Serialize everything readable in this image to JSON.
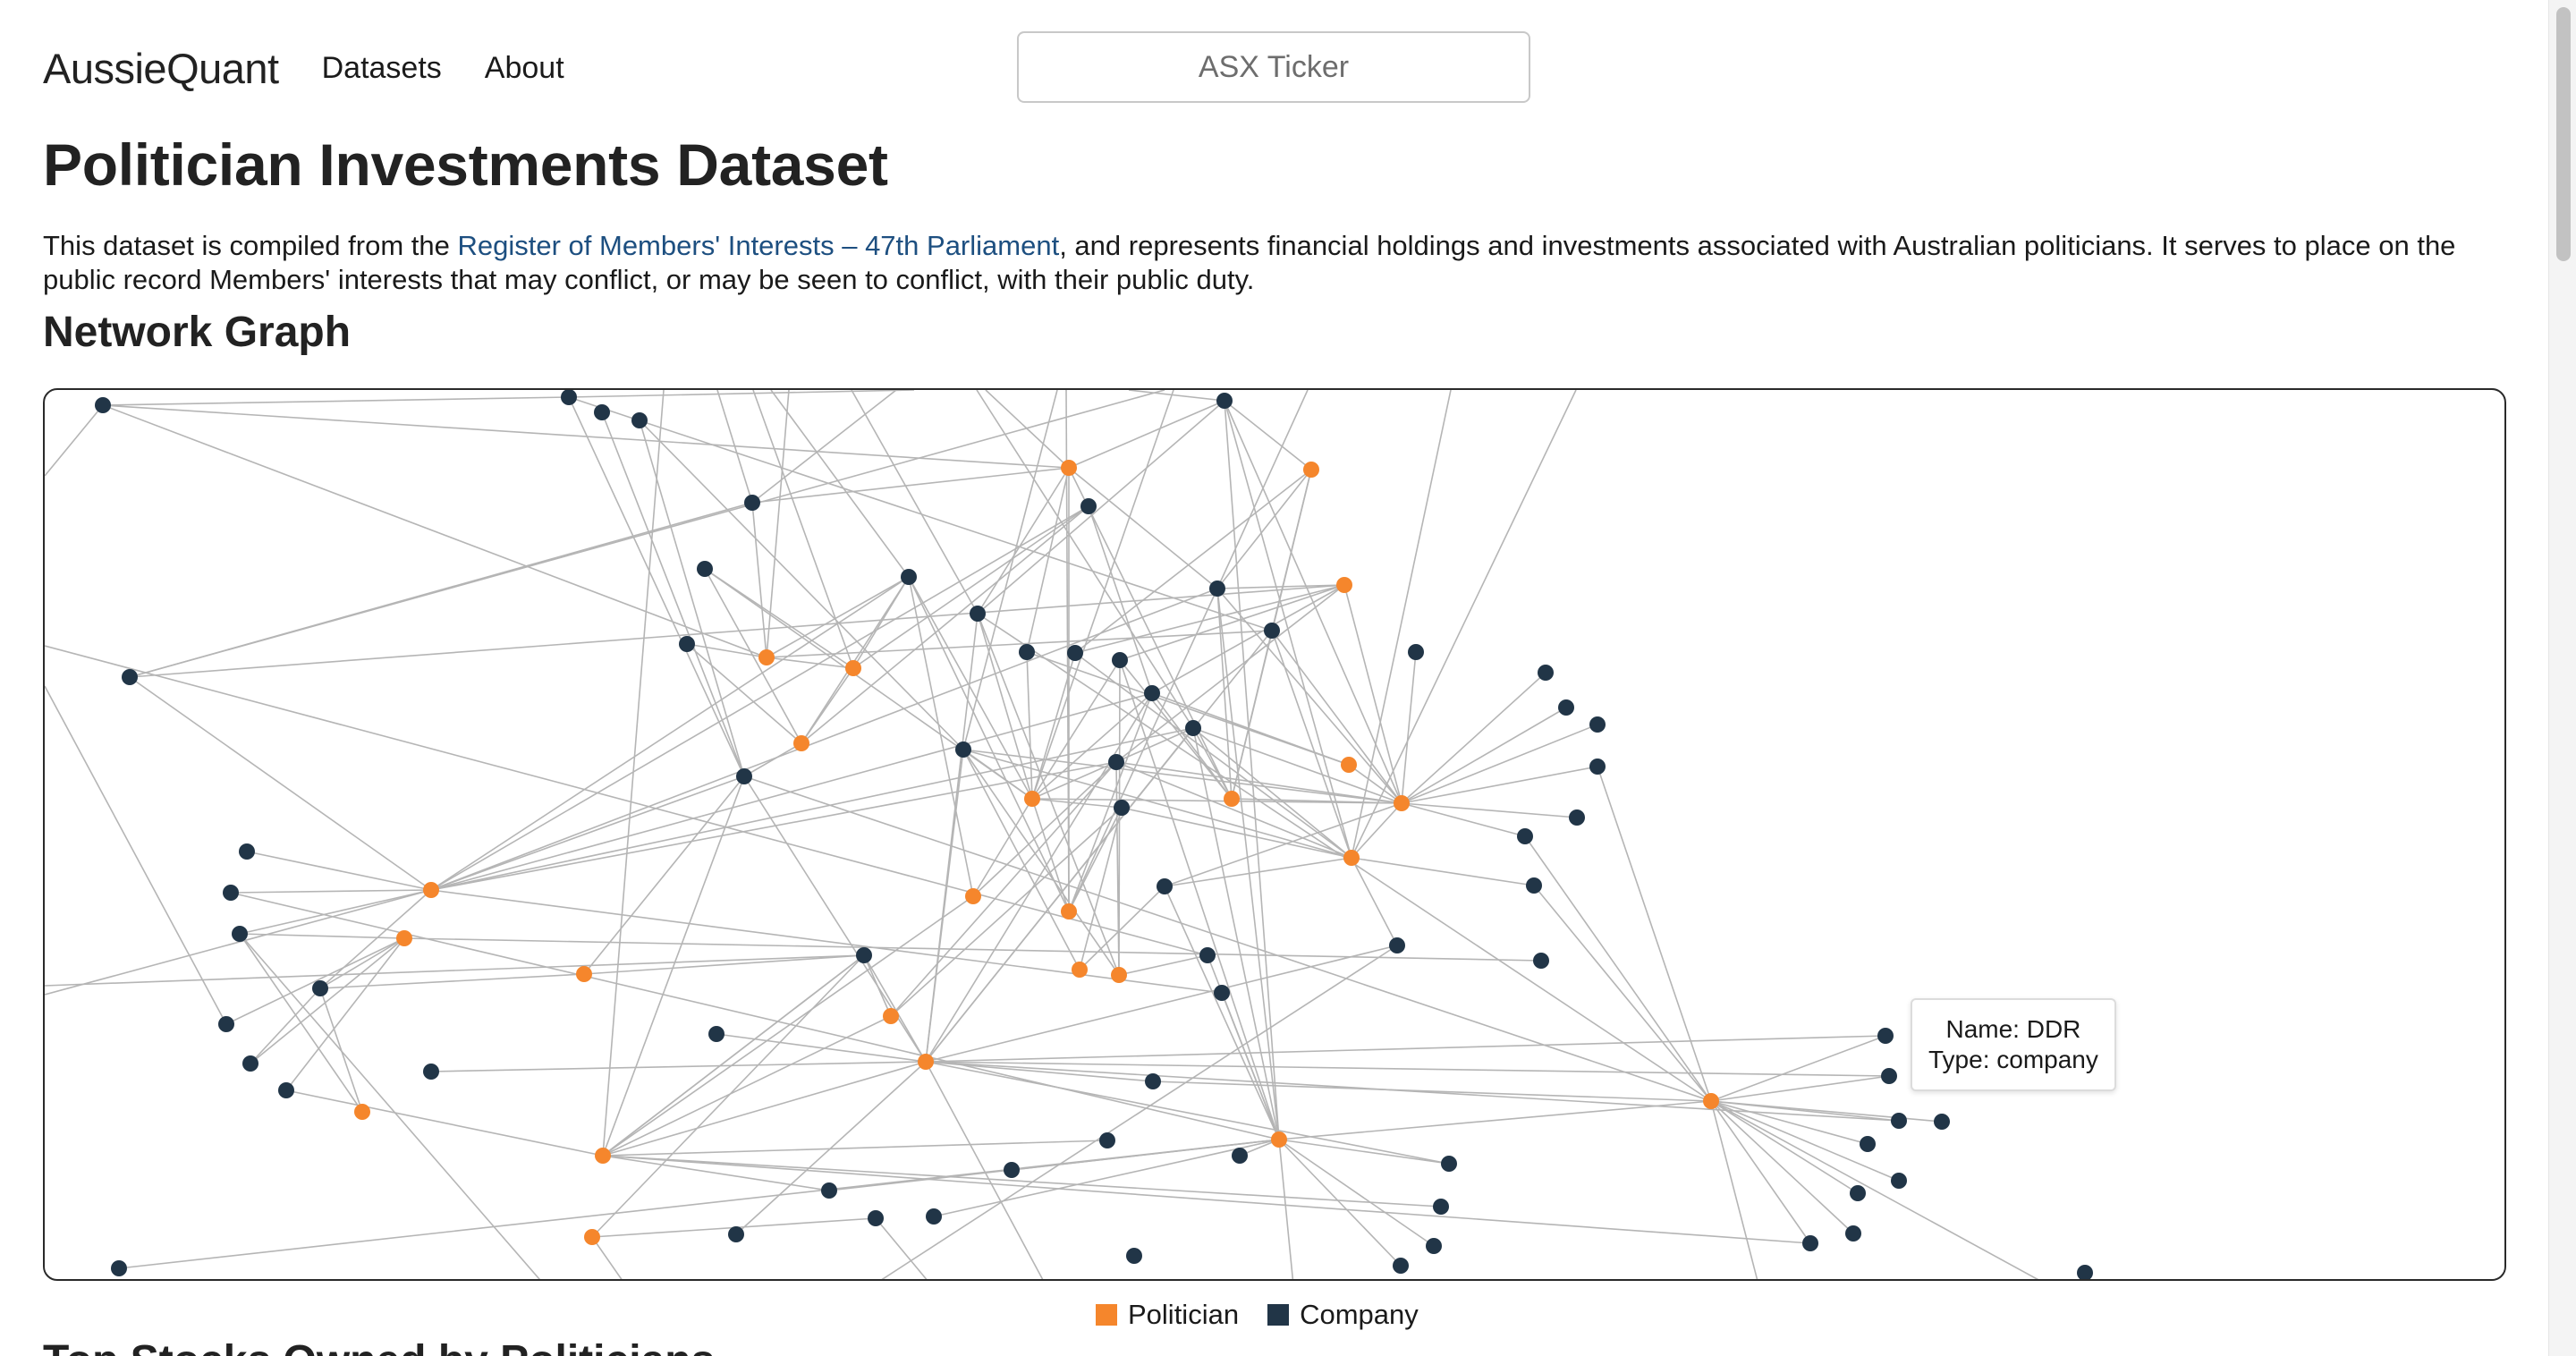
{
  "nav": {
    "brand": "AussieQuant",
    "links": [
      "Datasets",
      "About"
    ],
    "search_placeholder": "ASX Ticker"
  },
  "page": {
    "title": "Politician Investments Dataset",
    "desc_before": "This dataset is compiled from the ",
    "desc_link": "Register of Members' Interests – 47th Parliament",
    "desc_after": ", and represents financial holdings and investments associated with Australian politicians. It serves to place on the public record Members' interests that may conflict, or may be seen to conflict, with their public duty.",
    "graph_heading": "Network Graph",
    "next_heading": "Top Stocks Owned by Politicians"
  },
  "tooltip": {
    "name_line": "Name: DDR",
    "type_line": "Type: company"
  },
  "legend": [
    {
      "label": "Politician",
      "color": "#f5862c"
    },
    {
      "label": "Company",
      "color": "#213547"
    }
  ],
  "colors": {
    "politician": "#f5862c",
    "company": "#213547",
    "edge": "#b5b5b5",
    "link": "#1d4f80"
  }
}
